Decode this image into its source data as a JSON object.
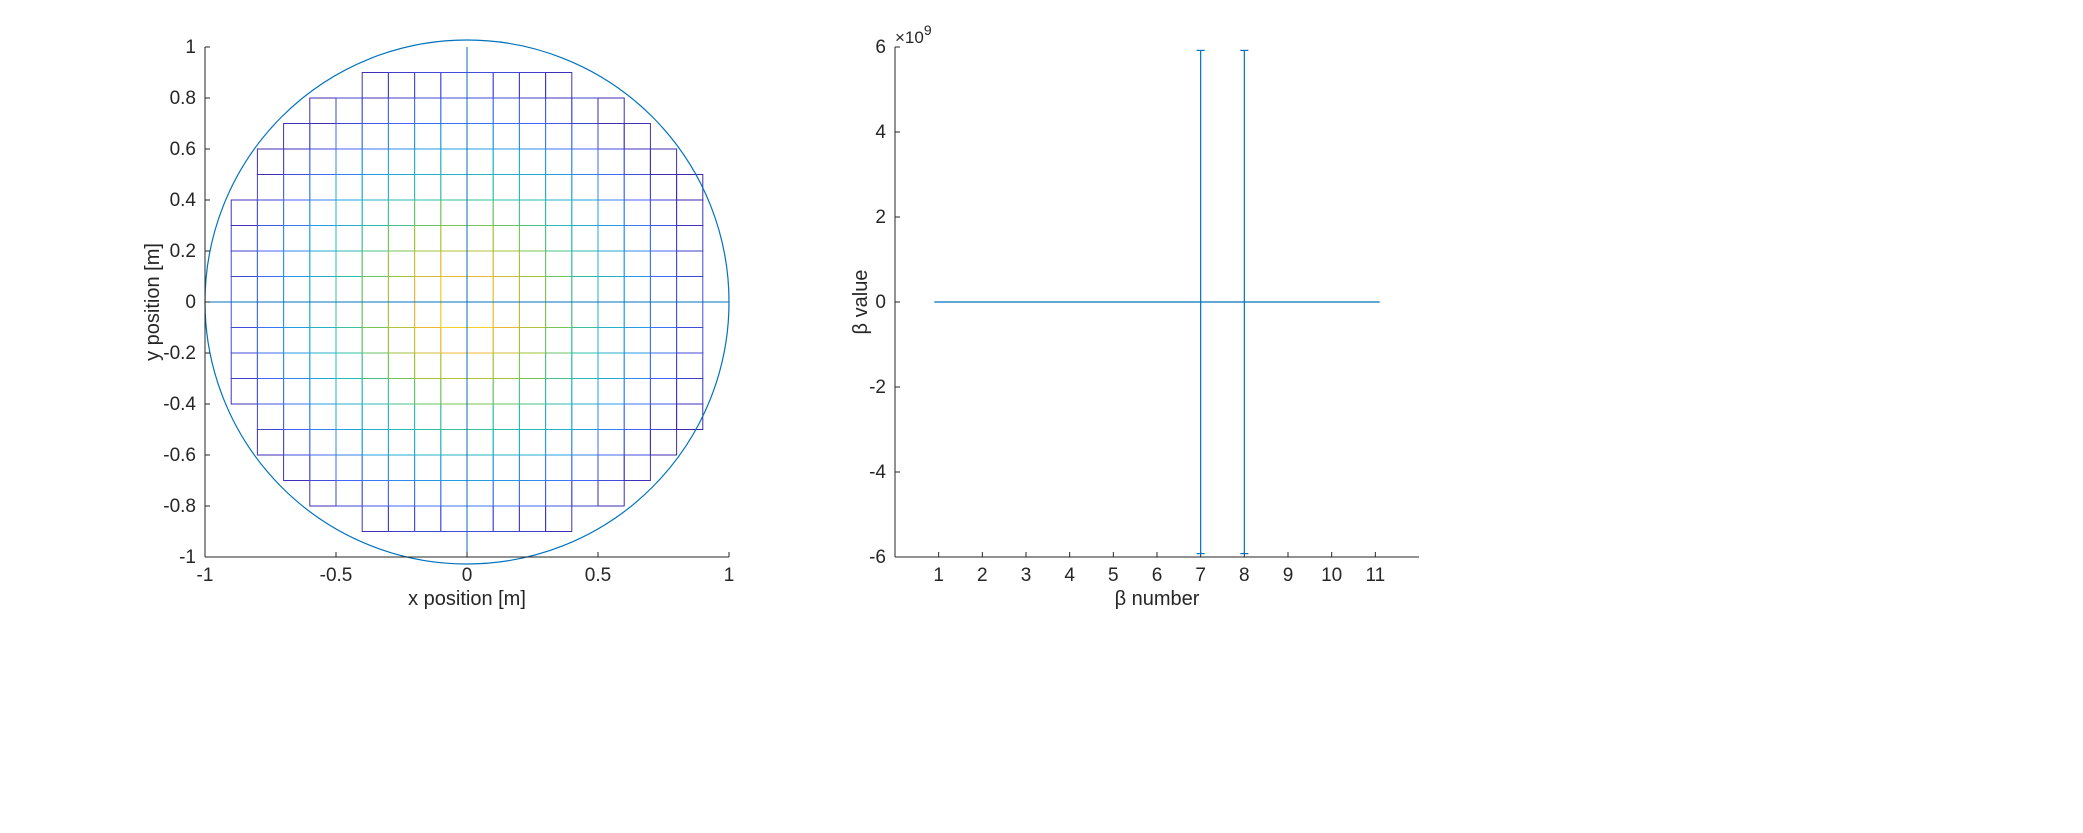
{
  "chart_data": [
    {
      "type": "heatmap",
      "title": "",
      "xlabel": "x position [m]",
      "ylabel": "y position [m]",
      "xlim": [
        -1,
        1
      ],
      "ylim": [
        -1,
        1
      ],
      "xticks": [
        "-1",
        "-0.5",
        "0",
        "0.5",
        "1"
      ],
      "yticks": [
        "-1",
        "-0.8",
        "-0.6",
        "-0.4",
        "-0.2",
        "0",
        "0.2",
        "0.4",
        "0.6",
        "0.8",
        "1"
      ],
      "boundary": {
        "shape": "circle",
        "center": [
          0,
          0
        ],
        "radius": 1
      },
      "grid_spacing": 0.1,
      "row_extents": [
        {
          "y_bottom": -0.9,
          "y_top": -0.8,
          "x_min": -0.4,
          "x_max": 0.4
        },
        {
          "y_bottom": -0.8,
          "y_top": -0.7,
          "x_min": -0.6,
          "x_max": 0.6
        },
        {
          "y_bottom": -0.7,
          "y_top": -0.6,
          "x_min": -0.7,
          "x_max": 0.7
        },
        {
          "y_bottom": -0.6,
          "y_top": -0.5,
          "x_min": -0.8,
          "x_max": 0.8
        },
        {
          "y_bottom": -0.5,
          "y_top": -0.4,
          "x_min": -0.8,
          "x_max": 0.9
        },
        {
          "y_bottom": -0.4,
          "y_top": 0.4,
          "x_min": -0.9,
          "x_max": 0.9
        },
        {
          "y_bottom": 0.4,
          "y_top": 0.5,
          "x_min": -0.8,
          "x_max": 0.9
        },
        {
          "y_bottom": 0.5,
          "y_top": 0.6,
          "x_min": -0.8,
          "x_max": 0.8
        },
        {
          "y_bottom": 0.6,
          "y_top": 0.7,
          "x_min": -0.7,
          "x_max": 0.7
        },
        {
          "y_bottom": 0.7,
          "y_top": 0.8,
          "x_min": -0.6,
          "x_max": 0.6
        },
        {
          "y_bottom": 0.8,
          "y_top": 0.9,
          "x_min": -0.4,
          "x_max": 0.4
        }
      ],
      "colormap": [
        "#3e26a8",
        "#4465fc",
        "#1ea4e1",
        "#2bbfa8",
        "#90c53a",
        "#ecb932",
        "#f9e721"
      ],
      "boundary_color": "#0072bd"
    },
    {
      "type": "line",
      "title": "",
      "xlabel": "β number",
      "ylabel": "β value",
      "y_exponent": "×10^9",
      "xlim": [
        0,
        12
      ],
      "ylim": [
        -6,
        6
      ],
      "xticks": [
        "1",
        "2",
        "3",
        "4",
        "5",
        "6",
        "7",
        "8",
        "9",
        "10",
        "11"
      ],
      "yticks": [
        "-6",
        "-4",
        "-2",
        "0",
        "2",
        "4",
        "6"
      ],
      "series": [
        {
          "x": [
            1,
            2,
            3,
            4,
            5,
            6,
            7,
            8,
            9,
            10,
            11
          ],
          "values": [
            0,
            0,
            0,
            0,
            0,
            0,
            0,
            0,
            0,
            0,
            0
          ],
          "error": [
            0,
            0,
            0,
            0,
            0,
            0,
            5.92,
            5.92,
            0,
            0,
            0
          ]
        }
      ],
      "color": "#0072bd"
    }
  ]
}
